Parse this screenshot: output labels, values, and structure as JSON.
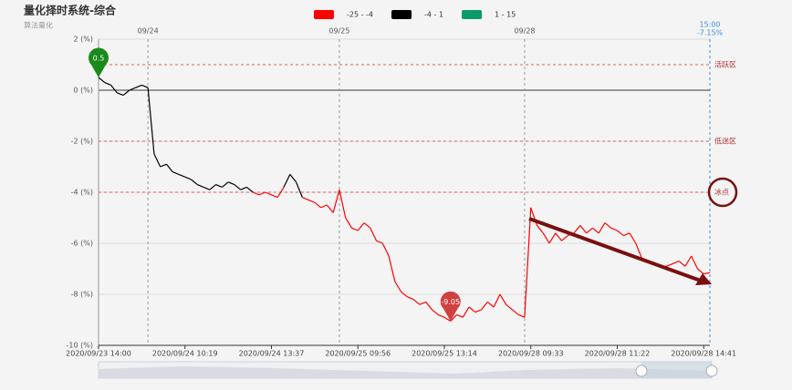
{
  "chart_data": {
    "type": "line",
    "title": "量化择时系统-综合",
    "subtitle": "算法量化",
    "categories": [
      "2020/09/23 14:00",
      null,
      null,
      null,
      null,
      null,
      null,
      null,
      null,
      null,
      null,
      null,
      null,
      null,
      "2020/09/24 10:19",
      null,
      null,
      null,
      null,
      null,
      null,
      null,
      null,
      null,
      null,
      null,
      null,
      null,
      "2020/09/24 13:37",
      null,
      null,
      null,
      null,
      null,
      null,
      null,
      null,
      null,
      null,
      null,
      null,
      null,
      "2020/09/25 09:56",
      null,
      null,
      null,
      null,
      null,
      null,
      null,
      null,
      null,
      null,
      null,
      null,
      null,
      "2020/09/25 13:14",
      null,
      null,
      null,
      null,
      null,
      null,
      null,
      null,
      null,
      null,
      null,
      null,
      null,
      "2020/09/28 09:33",
      null,
      null,
      null,
      null,
      null,
      null,
      null,
      null,
      null,
      null,
      null,
      null,
      null,
      "2020/09/28 11:22",
      null,
      null,
      null,
      null,
      null,
      null,
      null,
      null,
      null,
      null,
      null,
      null,
      null,
      "2020/09/28 14:41",
      null
    ],
    "top_categories": [
      null,
      null,
      null,
      null,
      null,
      null,
      null,
      null,
      "09/24",
      null,
      null,
      null,
      null,
      null,
      null,
      null,
      null,
      null,
      null,
      null,
      null,
      null,
      null,
      null,
      null,
      null,
      null,
      null,
      null,
      null,
      null,
      null,
      null,
      null,
      null,
      null,
      null,
      null,
      null,
      "09/25",
      null,
      null,
      null,
      null,
      null,
      null,
      null,
      null,
      null,
      null,
      null,
      null,
      null,
      null,
      null,
      null,
      null,
      null,
      null,
      null,
      null,
      null,
      null,
      null,
      null,
      null,
      null,
      null,
      null,
      "09/28",
      null,
      null,
      null,
      null,
      null,
      null,
      null,
      null,
      null,
      null,
      null,
      null,
      null,
      null,
      null,
      null,
      null,
      null,
      null,
      null,
      null,
      null,
      null,
      null,
      null,
      null,
      null,
      null,
      null,
      "15:00"
    ],
    "series": [
      {
        "values": [
          0.5,
          0.3,
          0.2,
          -0.1,
          -0.2,
          0,
          0.1,
          0.2,
          0.1,
          -2.5,
          -3,
          -2.9,
          -3.2,
          -3.3,
          -3.4,
          -3.5,
          -3.7,
          -3.8,
          -3.9,
          -3.7,
          -3.8,
          -3.6,
          -3.7,
          -3.9,
          -3.8,
          -4.0,
          -4.1,
          -4.0,
          -4.1,
          -4.2,
          -3.8,
          -3.3,
          -3.6,
          -4.2,
          -4.3,
          -4.4,
          -4.6,
          -4.5,
          -4.8,
          -3.9,
          -5.0,
          -5.4,
          -5.5,
          -5.2,
          -5.4,
          -5.9,
          -6.0,
          -6.5,
          -7.5,
          -7.9,
          -8.1,
          -8.2,
          -8.4,
          -8.3,
          -8.6,
          -8.8,
          -8.9,
          -9.05,
          -8.8,
          -8.9,
          -8.5,
          -8.7,
          -8.6,
          -8.3,
          -8.5,
          -8.0,
          -8.4,
          -8.6,
          -8.8,
          -8.9,
          -4.6,
          -5.3,
          -5.6,
          -6.0,
          -5.6,
          -5.9,
          -5.7,
          -5.6,
          -5.3,
          -5.6,
          -5.4,
          -5.6,
          -5.2,
          -5.4,
          -5.5,
          -5.7,
          -5.6,
          -6.0,
          -6.6,
          -6.7,
          -6.8,
          -6.9,
          -6.9,
          -6.8,
          -6.7,
          -6.9,
          -6.5,
          -7.0,
          -7.2,
          -7.15
        ],
        "value_labels": [
          null,
          null,
          null,
          null,
          null,
          null,
          null,
          null,
          null,
          null,
          null,
          null,
          null,
          null,
          null,
          null,
          null,
          null,
          null,
          null,
          null,
          null,
          null,
          null,
          null,
          null,
          null,
          null,
          null,
          null,
          null,
          null,
          null,
          null,
          null,
          null,
          null,
          null,
          null,
          null,
          null,
          null,
          null,
          null,
          null,
          null,
          null,
          null,
          null,
          null,
          null,
          null,
          null,
          null,
          null,
          null,
          null,
          null,
          null,
          null,
          null,
          null,
          null,
          null,
          null,
          null,
          null,
          null,
          null,
          null,
          null,
          null,
          null,
          null,
          null,
          null,
          null,
          null,
          null,
          null,
          null,
          null,
          null,
          null,
          null,
          null,
          null,
          null,
          null,
          null,
          null,
          null,
          null,
          null,
          null,
          null,
          null,
          null,
          null,
          "-7.15%"
        ]
      }
    ],
    "pieces": [
      {
        "min": -25,
        "max": -4,
        "label": "-25 - -4",
        "color": "#ff0000"
      },
      {
        "min": -4,
        "max": 1,
        "label": "-4 - 1",
        "color": "#000000"
      },
      {
        "min": 1,
        "max": 15,
        "label": "1 - 15",
        "color": "#0a9a6b"
      }
    ],
    "mark_lines": [
      {
        "value": 1,
        "label": "活跃区"
      },
      {
        "value": -2,
        "label": "低迷区"
      },
      {
        "value": -4,
        "label": "冰点"
      }
    ],
    "ylim": [
      -10,
      2
    ],
    "yticks": [
      {
        "value": -10,
        "label": "-10 (%)"
      },
      {
        "value": -8,
        "label": "-8 (%)"
      },
      {
        "value": -6,
        "label": "-6 (%)"
      },
      {
        "value": -4,
        "label": "-4 (%)"
      },
      {
        "value": -2,
        "label": "-2 (%)"
      },
      {
        "value": 0,
        "label": "0 (%)"
      },
      {
        "value": 2,
        "label": "2 (%)"
      }
    ],
    "grid": true
  }
}
